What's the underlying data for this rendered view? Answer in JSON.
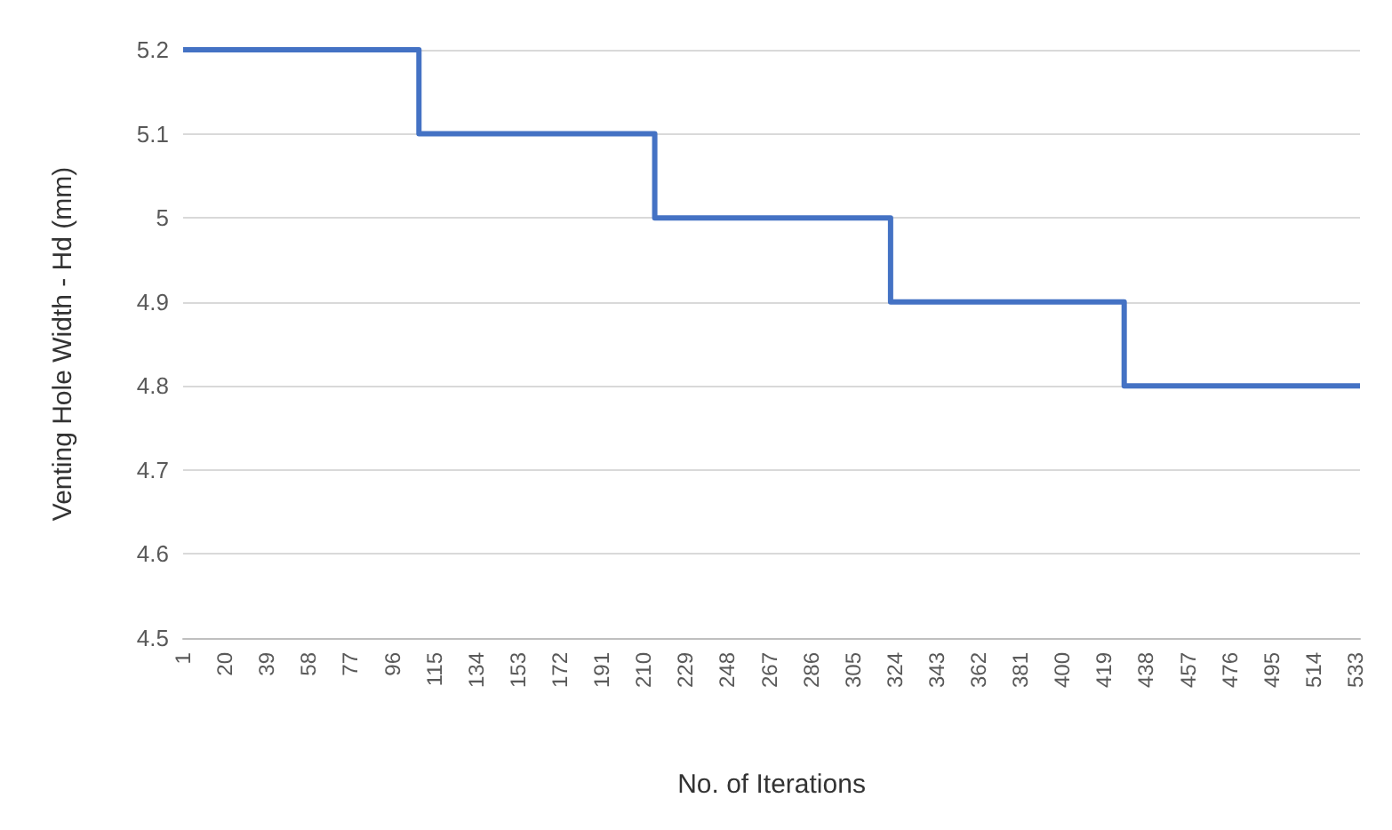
{
  "chart_data": {
    "type": "step",
    "xlabel": "No. of Iterations",
    "ylabel": "Venting Hole Width - Hd (mm)",
    "x": [
      1,
      108,
      215,
      322,
      428,
      535
    ],
    "series": [
      {
        "color": "#4472c4",
        "values": [
          5.2,
          5.1,
          5.0,
          4.9,
          4.8,
          4.8
        ]
      }
    ],
    "xlim": [
      1,
      535
    ],
    "xticks": [
      1,
      20,
      39,
      58,
      77,
      96,
      115,
      134,
      153,
      172,
      191,
      210,
      229,
      248,
      267,
      286,
      305,
      324,
      343,
      362,
      381,
      400,
      419,
      438,
      457,
      476,
      495,
      514,
      533
    ],
    "ylim": [
      4.5,
      5.2
    ],
    "yticks": [
      4.5,
      4.6,
      4.7,
      4.8,
      4.9,
      5,
      5.1,
      5.2
    ],
    "grid": "y",
    "marker": "none",
    "line_style": "solid"
  }
}
